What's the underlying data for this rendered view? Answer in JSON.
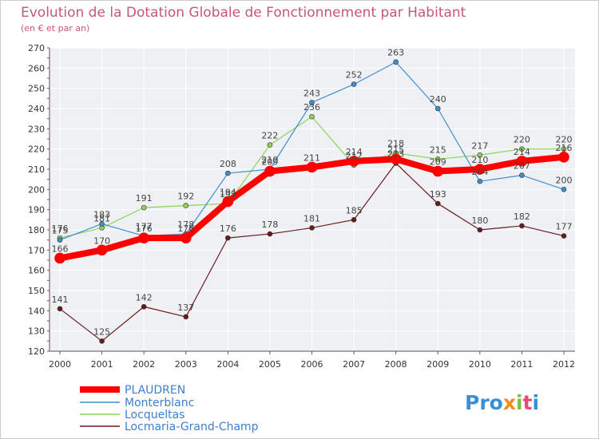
{
  "chart_data": {
    "type": "line",
    "title": "Evolution de la Dotation Globale de Fonctionnement par Habitant",
    "subtitle": "(en € et par an)",
    "xlabel": "",
    "ylabel": "",
    "ylim": [
      120,
      270
    ],
    "yticks": [
      120,
      130,
      140,
      150,
      160,
      170,
      180,
      190,
      200,
      210,
      220,
      230,
      240,
      250,
      260,
      270
    ],
    "categories": [
      "2000",
      "2001",
      "2002",
      "2003",
      "2004",
      "2005",
      "2006",
      "2007",
      "2008",
      "2009",
      "2010",
      "2011",
      "2012"
    ],
    "grid": true,
    "legend_position": "bottom-left",
    "series": [
      {
        "name": "PLAUDREN",
        "color": "#ff0000",
        "values": [
          166,
          170,
          176,
          176,
          194,
          209,
          211,
          214,
          215,
          209,
          210,
          214,
          216
        ]
      },
      {
        "name": "Monterblanc",
        "color": "#3d8fd0",
        "values": [
          175,
          183,
          177,
          178,
          208,
          210,
          243,
          252,
          263,
          240,
          204,
          207,
          200
        ]
      },
      {
        "name": "Locqueltas",
        "color": "#8ed45a",
        "values": [
          176,
          181,
          191,
          192,
          193,
          222,
          236,
          212,
          218,
          215,
          217,
          220,
          220
        ]
      },
      {
        "name": "Locmaria-Grand-Champ",
        "color": "#6b1a1a",
        "values": [
          141,
          125,
          142,
          137,
          176,
          178,
          181,
          185,
          213,
          193,
          180,
          182,
          177
        ]
      }
    ]
  },
  "logo": {
    "p1": "Pro",
    "p2": "x",
    "p3": "i",
    "p4": "t",
    "p5": "i"
  }
}
